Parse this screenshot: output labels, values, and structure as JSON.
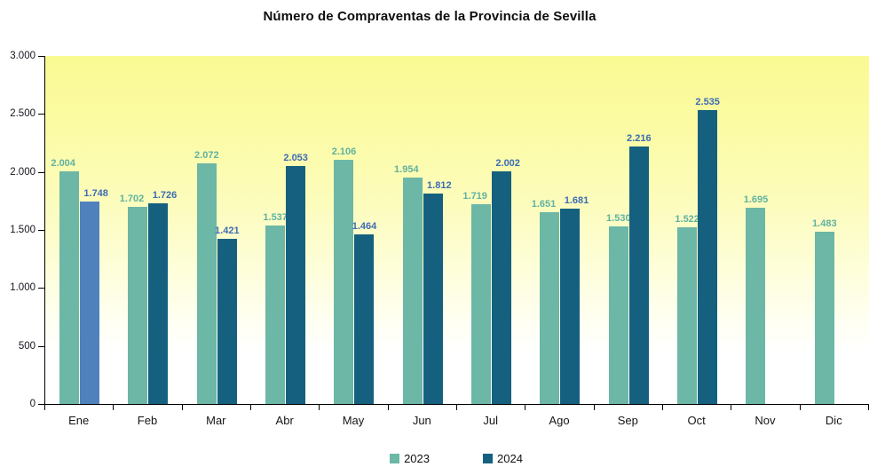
{
  "title": "Número de Compraventas de la Provincia de Sevilla",
  "chart_data": {
    "type": "bar",
    "title": "Número de Compraventas de la Provincia de Sevilla",
    "categories": [
      "Ene",
      "Feb",
      "Mar",
      "Abr",
      "May",
      "Jun",
      "Jul",
      "Ago",
      "Sep",
      "Oct",
      "Nov",
      "Dic"
    ],
    "series": [
      {
        "name": "2023",
        "color": "#6CB7A6",
        "label_color": "#5FB2A1",
        "values": [
          2004,
          1702,
          2072,
          1537,
          2106,
          1954,
          1719,
          1651,
          1530,
          1522,
          1695,
          1483
        ]
      },
      {
        "name": "2024",
        "color": "#16607F",
        "label_color": "#3D6CB4",
        "point_colors": {
          "0": "#4F81BD"
        },
        "values": [
          1748,
          1726,
          1421,
          2053,
          1464,
          1812,
          2002,
          1681,
          2216,
          2535,
          null,
          null
        ]
      }
    ],
    "ylim": [
      0,
      3000
    ],
    "yticks": [
      0,
      500,
      1000,
      1500,
      2000,
      2500,
      3000
    ],
    "ytick_labels": [
      "0",
      "500",
      "1.000",
      "1.500",
      "2.000",
      "2.500",
      "3.000"
    ],
    "number_format": "thousands-dot",
    "grid": false,
    "legend_position": "bottom",
    "plot_background": {
      "top": "#FAFA93",
      "bottom": "#FFFFFF"
    },
    "axis_color": "#000000"
  }
}
